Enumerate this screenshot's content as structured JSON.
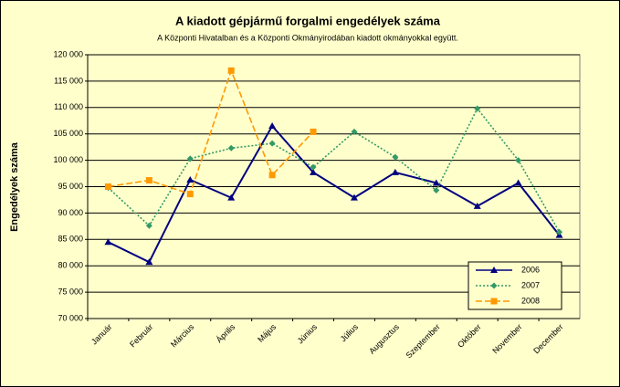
{
  "chart_data": {
    "type": "line",
    "title": "A  kiadott gépjármű forgalmi engedélyek száma",
    "subtitle": "A  Központi Hivatalban és a Központi Okmányirodában kiadott okmányokkal együtt.",
    "y_label": "Engedélyek száma",
    "categories": [
      "Január",
      "Február",
      "Március",
      "Április",
      "Május",
      "Június",
      "Július",
      "Augusztus",
      "Szeptember",
      "Október",
      "November",
      "December"
    ],
    "series": [
      {
        "name": "2006",
        "color": "#000080",
        "marker": "triangle",
        "dash": "solid",
        "values": [
          84500,
          80700,
          96300,
          92900,
          106500,
          97700,
          92900,
          97700,
          95700,
          91300,
          95700,
          85800
        ]
      },
      {
        "name": "2007",
        "color": "#339966",
        "marker": "diamond",
        "dash": "dotted",
        "values": [
          94800,
          87600,
          100300,
          102300,
          103200,
          98700,
          105400,
          100600,
          94300,
          109800,
          100000,
          86400
        ]
      },
      {
        "name": "2008",
        "color": "#ff9900",
        "marker": "square",
        "dash": "dashed",
        "values": [
          95000,
          96200,
          93600,
          117000,
          97200,
          105400,
          null,
          null,
          null,
          null,
          null,
          null
        ]
      }
    ],
    "ylim": [
      70000,
      120000
    ],
    "yticks": [
      {
        "value": 70000,
        "label": "70 000"
      },
      {
        "value": 75000,
        "label": "75 000"
      },
      {
        "value": 80000,
        "label": "80 000"
      },
      {
        "value": 85000,
        "label": "85 000"
      },
      {
        "value": 90000,
        "label": "90 000"
      },
      {
        "value": 95000,
        "label": "95 000"
      },
      {
        "value": 100000,
        "label": "100 000"
      },
      {
        "value": 105000,
        "label": "105 000"
      },
      {
        "value": 110000,
        "label": "110 000"
      },
      {
        "value": 115000,
        "label": "115 000"
      },
      {
        "value": 120000,
        "label": "120 000"
      }
    ],
    "grid": true,
    "legend": "lower right"
  }
}
